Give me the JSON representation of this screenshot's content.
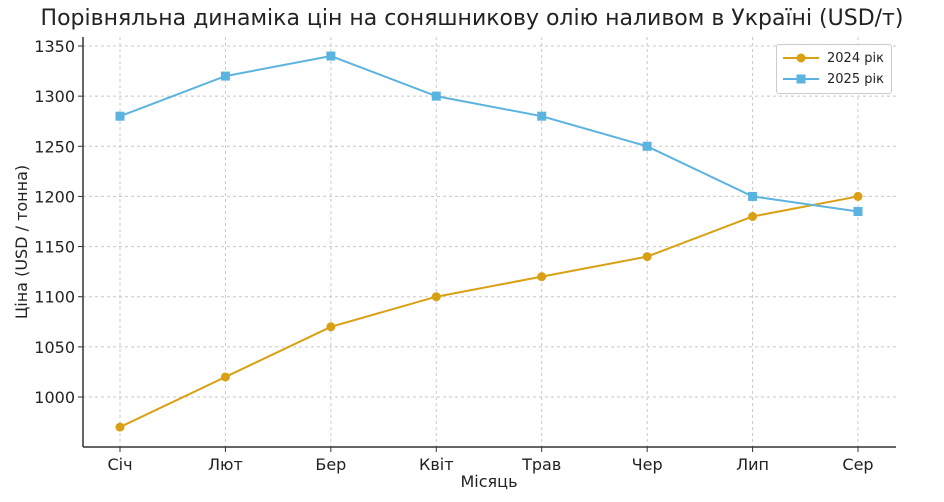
{
  "chart_data": {
    "type": "line",
    "title": "Порівняльна динаміка цін на соняшникову олію наливом в Україні (USD/т)",
    "xlabel": "Місяць",
    "ylabel": "Ціна (USD / тонна)",
    "categories": [
      "Січ",
      "Лют",
      "Бер",
      "Квіт",
      "Трав",
      "Чер",
      "Лип",
      "Сер"
    ],
    "series": [
      {
        "name": "2024 рік",
        "color": "#DAA014",
        "marker": "circle",
        "values": [
          970,
          1020,
          1070,
          1100,
          1120,
          1140,
          1180,
          1200
        ]
      },
      {
        "name": "2025 рік",
        "color": "#5BB3E0",
        "marker": "square",
        "values": [
          1280,
          1320,
          1340,
          1300,
          1280,
          1250,
          1200,
          1185
        ]
      }
    ],
    "yticks": [
      1000,
      1050,
      1100,
      1150,
      1200,
      1250,
      1300,
      1350
    ],
    "ylim": [
      960,
      1360
    ],
    "grid": true,
    "legend_position": "upper right"
  }
}
